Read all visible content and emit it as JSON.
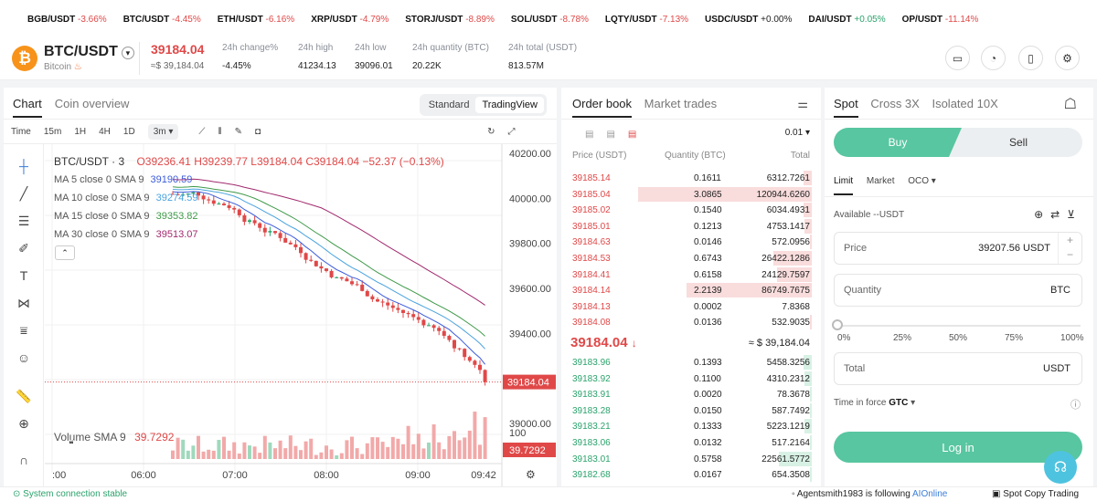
{
  "ticker": [
    {
      "sym": "BGB/USDT",
      "chg": "-3.66%",
      "dir": "down"
    },
    {
      "sym": "BTC/USDT",
      "chg": "-4.45%",
      "dir": "down"
    },
    {
      "sym": "ETH/USDT",
      "chg": "-6.16%",
      "dir": "down"
    },
    {
      "sym": "XRP/USDT",
      "chg": "-4.79%",
      "dir": "down"
    },
    {
      "sym": "STORJ/USDT",
      "chg": "-8.89%",
      "dir": "down"
    },
    {
      "sym": "SOL/USDT",
      "chg": "-8.78%",
      "dir": "down"
    },
    {
      "sym": "LQTY/USDT",
      "chg": "-7.13%",
      "dir": "down"
    },
    {
      "sym": "USDC/USDT",
      "chg": "+0.00%",
      "dir": "flat"
    },
    {
      "sym": "DAI/USDT",
      "chg": "+0.05%",
      "dir": "up"
    },
    {
      "sym": "OP/USDT",
      "chg": "-11.14%",
      "dir": "down"
    }
  ],
  "header": {
    "coin_icon": "₿",
    "pair": "BTC/USDT",
    "coin_name": "Bitcoin",
    "last_price": "39184.04",
    "last_price_usd": "≈$ 39,184.04",
    "stats": [
      {
        "label": "24h change%",
        "value": "-4.45%"
      },
      {
        "label": "24h high",
        "value": "41234.13"
      },
      {
        "label": "24h low",
        "value": "39096.01"
      },
      {
        "label": "24h quantity (BTC)",
        "value": "20.22K"
      },
      {
        "label": "24h total (USDT)",
        "value": "813.57M"
      }
    ],
    "icons": [
      "ticket-icon",
      "bell-icon",
      "book-icon",
      "settings-icon"
    ]
  },
  "chart_panel": {
    "tabs": [
      "Chart",
      "Coin overview"
    ],
    "view_modes": [
      "Standard",
      "TradingView"
    ],
    "timeframes": [
      "Time",
      "15m",
      "1H",
      "4H",
      "1D",
      "3m"
    ],
    "title": "BTC/USDT · 3",
    "ohlc": {
      "o": "O39236.41",
      "h": "H39239.77",
      "l": "L39184.04",
      "c": "C39184.04",
      "chg": "−52.37 (−0.13%)"
    },
    "ma": [
      {
        "label": "MA 5 close 0 SMA 9",
        "value": "39190.59",
        "color": "#3b5bdb"
      },
      {
        "label": "MA 10 close 0 SMA 9",
        "value": "39274.59",
        "color": "#4aa3df"
      },
      {
        "label": "MA 15 close 0 SMA 9",
        "value": "39353.82",
        "color": "#3f9a49"
      },
      {
        "label": "MA 30 close 0 SMA 9",
        "value": "39513.07",
        "color": "#a12a6e"
      }
    ],
    "volume_label": "Volume SMA 9",
    "volume_value": "39.7292",
    "price_tag": "39184.04",
    "volume_tag": "39.7292",
    "vol_axis": "100"
  },
  "chart_data": {
    "type": "candlestick",
    "x_ticks": [
      ":00",
      "06:00",
      "07:00",
      "08:00",
      "09:00",
      "09:42"
    ],
    "y_ticks": [
      "40200.00",
      "40000.00",
      "39800.00",
      "39600.00",
      "39400.00",
      "39000.00"
    ],
    "ylim": [
      39000,
      40200
    ],
    "last": 39184.04
  },
  "orderbook": {
    "tabs": [
      "Order book",
      "Market trades"
    ],
    "precision": "0.01",
    "cols": [
      "Price (USDT)",
      "Quantity (BTC)",
      "Total"
    ],
    "asks": [
      {
        "p": "39185.14",
        "q": "0.1611",
        "t": "6312.7261",
        "d": 0.05
      },
      {
        "p": "39185.04",
        "q": "3.0865",
        "t": "120944.6260",
        "d": 1.0
      },
      {
        "p": "39185.02",
        "q": "0.1540",
        "t": "6034.4931",
        "d": 0.05
      },
      {
        "p": "39185.01",
        "q": "0.1213",
        "t": "4753.1417",
        "d": 0.04
      },
      {
        "p": "39184.63",
        "q": "0.0146",
        "t": "572.0956",
        "d": 0.01
      },
      {
        "p": "39184.53",
        "q": "0.6743",
        "t": "26422.1286",
        "d": 0.22
      },
      {
        "p": "39184.41",
        "q": "0.6158",
        "t": "24129.7597",
        "d": 0.2
      },
      {
        "p": "39184.14",
        "q": "2.2139",
        "t": "86749.7675",
        "d": 0.72
      },
      {
        "p": "39184.13",
        "q": "0.0002",
        "t": "7.8368",
        "d": 0
      },
      {
        "p": "39184.08",
        "q": "0.0136",
        "t": "532.9035",
        "d": 0.01
      }
    ],
    "mid_price": "39184.04",
    "mid_usd": "≈ $ 39,184.04",
    "bids": [
      {
        "p": "39183.96",
        "q": "0.1393",
        "t": "5458.3256",
        "d": 0.05
      },
      {
        "p": "39183.92",
        "q": "0.1100",
        "t": "4310.2312",
        "d": 0.04
      },
      {
        "p": "39183.91",
        "q": "0.0020",
        "t": "78.3678",
        "d": 0.01
      },
      {
        "p": "39183.28",
        "q": "0.0150",
        "t": "587.7492",
        "d": 0.01
      },
      {
        "p": "39183.21",
        "q": "0.1333",
        "t": "5223.1219",
        "d": 0.04
      },
      {
        "p": "39183.06",
        "q": "0.0132",
        "t": "517.2164",
        "d": 0.01
      },
      {
        "p": "39183.01",
        "q": "0.5758",
        "t": "22561.5772",
        "d": 0.19
      },
      {
        "p": "39182.68",
        "q": "0.0167",
        "t": "654.3508",
        "d": 0.01
      }
    ]
  },
  "trade": {
    "tabs": [
      "Spot",
      "Cross 3X",
      "Isolated 10X"
    ],
    "buy": "Buy",
    "sell": "Sell",
    "order_types": [
      "Limit",
      "Market",
      "OCO"
    ],
    "available": "Available --USDT",
    "price_label": "Price",
    "price_value": "39207.56 USDT",
    "qty_label": "Quantity",
    "qty_unit": "BTC",
    "pct": [
      "0%",
      "25%",
      "50%",
      "75%",
      "100%"
    ],
    "total_label": "Total",
    "total_unit": "USDT",
    "tif_label": "Time in force",
    "tif_value": "GTC",
    "login": "Log in"
  },
  "footer": {
    "status": "System connection stable",
    "follow_user": "Agentsmith1983",
    "follow_text": "is following",
    "follow_target": "AIOnline",
    "copy": "Spot Copy Trading"
  }
}
